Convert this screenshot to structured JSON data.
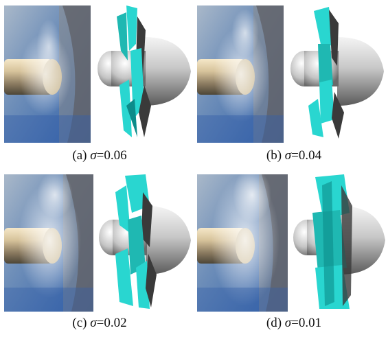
{
  "figure": {
    "panels": [
      {
        "label": "(a)",
        "symbol": "σ",
        "relation": "=",
        "value": "0.06"
      },
      {
        "label": "(b)",
        "symbol": "σ",
        "relation": "=",
        "value": "0.04"
      },
      {
        "label": "(c)",
        "symbol": "σ",
        "relation": "=",
        "value": "0.02"
      },
      {
        "label": "(d)",
        "symbol": "σ",
        "relation": "=",
        "value": "0.01"
      }
    ],
    "colors": {
      "cavity": "#29d6d0",
      "cavity_dark": "#0c8c8a",
      "hub": "#bdbdbd",
      "blade": "#3a3a3a",
      "photo_blue": "#4f7fbf",
      "photo_metal": "#c9b79a"
    }
  }
}
